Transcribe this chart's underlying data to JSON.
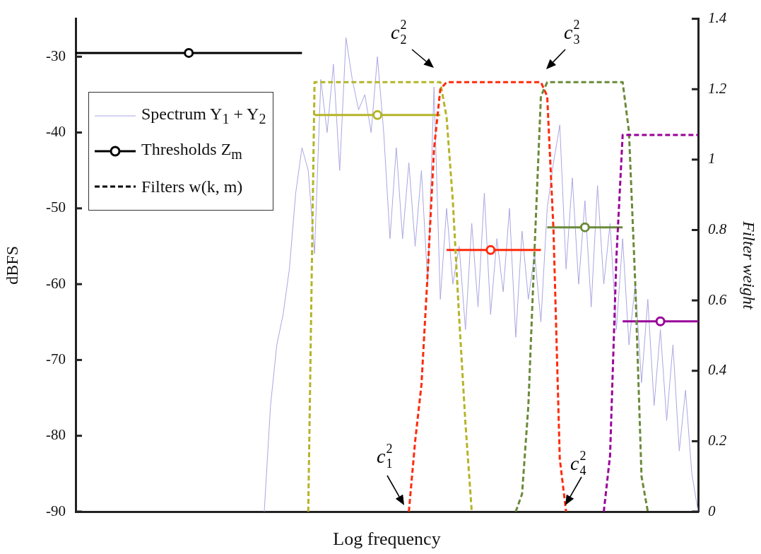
{
  "chart_data": {
    "type": "line",
    "xlabel": "Log frequency",
    "ylabel": "dBFS",
    "y2label": "Filter weight",
    "legend": "top left",
    "categories": [
      null,
      null,
      null,
      null,
      null,
      null,
      null,
      null,
      null,
      null,
      null,
      null,
      null,
      null,
      null,
      null,
      null,
      null,
      null,
      null,
      null,
      null,
      null,
      null,
      null,
      null,
      null,
      null,
      null,
      null,
      null,
      null,
      null,
      null,
      null,
      null,
      null,
      null,
      null,
      null,
      null,
      null,
      null,
      null,
      null,
      null,
      null,
      null,
      null,
      null,
      null,
      null,
      null,
      null,
      null,
      null,
      null,
      null,
      null,
      null,
      null,
      null,
      null,
      null,
      null,
      null,
      null,
      null,
      null,
      null,
      null,
      null,
      null,
      null,
      null,
      null,
      null,
      null,
      null,
      null,
      null,
      null,
      null,
      null,
      null,
      null,
      null,
      null,
      null,
      null,
      null,
      null,
      null,
      null,
      null,
      null,
      null,
      null,
      null,
      null
    ],
    "ylim": [
      -90,
      -25
    ],
    "yticks": [
      -90,
      -80,
      -70,
      -60,
      -50,
      -40,
      -30
    ],
    "y2lim": [
      0,
      1.4
    ],
    "y2ticks": [
      0,
      0.2,
      0.4,
      0.6,
      0.8,
      1,
      1.2,
      1.4
    ],
    "series": [
      {
        "name": "Spectrum Y$_{1}$ + Y$_{2}$",
        "color": "#aaa6e2",
        "values": [
          null,
          null,
          null,
          null,
          null,
          null,
          null,
          null,
          null,
          null,
          null,
          null,
          null,
          null,
          null,
          null,
          null,
          null,
          null,
          null,
          null,
          null,
          null,
          null,
          null,
          null,
          null,
          null,
          null,
          null,
          -90,
          -76,
          -68,
          -64,
          -58,
          -48,
          -42,
          -45,
          -56,
          -33,
          -40,
          -31,
          -45,
          -27.5,
          -33,
          -37,
          -35,
          -40,
          -30,
          -40,
          -54,
          -42,
          -54,
          -44,
          -55,
          -45,
          -60,
          -34,
          -62,
          -50,
          -60,
          -55,
          -66,
          -52,
          -63,
          -48,
          -64,
          -54,
          -61,
          -50,
          -67,
          -53,
          -62,
          -56,
          -65,
          -50,
          -44,
          -39,
          -58,
          -46,
          -60,
          -49,
          -63,
          -47,
          -60,
          -52,
          -66,
          -54,
          -68,
          -60,
          -73,
          -62,
          -76,
          -66,
          -78,
          -68,
          -82,
          -74,
          -85,
          -90
        ]
      },
      {
        "name": "Thresholds Z$_{m}$",
        "color": "#000000",
        "line_style": "solid",
        "values": [
          -29.5,
          -29.5,
          -29.5,
          -29.5,
          -29.5,
          -29.5,
          -29.5,
          -29.5,
          -29.5,
          -29.5,
          -29.5,
          -29.5,
          -29.5,
          -29.5,
          -29.5,
          -29.5,
          -29.5,
          -29.5,
          -29.5,
          -29.5,
          -29.5,
          -29.5,
          -29.5,
          -29.5,
          -29.5,
          -29.5,
          -29.5,
          -29.5,
          -29.5,
          -29.5,
          -29.5,
          -29.5,
          -29.5,
          -29.5,
          -29.5,
          -29.5,
          -29.5,
          null,
          null,
          null,
          null,
          null,
          null,
          null,
          null,
          null,
          null,
          null,
          null,
          null,
          null,
          null,
          null,
          null,
          null,
          null,
          null,
          null,
          null,
          null,
          null,
          null,
          null,
          null,
          null,
          null,
          null,
          null,
          null,
          null,
          null,
          null,
          null,
          null,
          null,
          null,
          null,
          null,
          null,
          null,
          null,
          null,
          null,
          null,
          null,
          null,
          null,
          null,
          null,
          null,
          null,
          null,
          null,
          null,
          null,
          null,
          null,
          null,
          null,
          null
        ]
      },
      {
        "type": "scatter",
        "color": "#000000",
        "marker": "circle",
        "values": [
          null,
          null,
          null,
          null,
          null,
          null,
          null,
          null,
          null,
          null,
          null,
          null,
          null,
          null,
          null,
          null,
          null,
          null,
          -29.5,
          null,
          null,
          null,
          null,
          null,
          null,
          null,
          null,
          null,
          null,
          null,
          null,
          null,
          null,
          null,
          null,
          null,
          null,
          null,
          null,
          null,
          null,
          null,
          null,
          null,
          null,
          null,
          null,
          null,
          null,
          null,
          null,
          null,
          null,
          null,
          null,
          null,
          null,
          null,
          null,
          null,
          null,
          null,
          null,
          null,
          null,
          null,
          null,
          null,
          null,
          null,
          null,
          null,
          null,
          null,
          null,
          null,
          null,
          null,
          null,
          null,
          null,
          null,
          null,
          null,
          null,
          null,
          null,
          null,
          null,
          null,
          null,
          null,
          null,
          null,
          null,
          null,
          null,
          null,
          null,
          null
        ]
      },
      {
        "color": "#b4b428",
        "line_style": "solid",
        "values": [
          null,
          null,
          null,
          null,
          null,
          null,
          null,
          null,
          null,
          null,
          null,
          null,
          null,
          null,
          null,
          null,
          null,
          null,
          null,
          null,
          null,
          null,
          null,
          null,
          null,
          null,
          null,
          null,
          null,
          null,
          null,
          null,
          null,
          null,
          null,
          null,
          null,
          null,
          -37.7,
          -37.7,
          -37.7,
          -37.7,
          -37.7,
          -37.7,
          -37.7,
          -37.7,
          -37.7,
          -37.7,
          -37.7,
          -37.7,
          -37.7,
          -37.7,
          -37.7,
          -37.7,
          -37.7,
          -37.7,
          -37.7,
          -37.7,
          -37.7,
          null,
          null,
          null,
          null,
          null,
          null,
          null,
          null,
          null,
          null,
          null,
          null,
          null,
          null,
          null,
          null,
          null,
          null,
          null,
          null,
          null,
          null,
          null,
          null,
          null,
          null,
          null,
          null,
          null,
          null,
          null,
          null,
          null,
          null,
          null,
          null,
          null,
          null,
          null,
          null,
          null
        ]
      },
      {
        "type": "scatter",
        "color": "#b4b428",
        "marker": "circle",
        "values": [
          null,
          null,
          null,
          null,
          null,
          null,
          null,
          null,
          null,
          null,
          null,
          null,
          null,
          null,
          null,
          null,
          null,
          null,
          null,
          null,
          null,
          null,
          null,
          null,
          null,
          null,
          null,
          null,
          null,
          null,
          null,
          null,
          null,
          null,
          null,
          null,
          null,
          null,
          null,
          null,
          null,
          null,
          null,
          null,
          null,
          null,
          null,
          null,
          -37.7,
          null,
          null,
          null,
          null,
          null,
          null,
          null,
          null,
          null,
          null,
          null,
          null,
          null,
          null,
          null,
          null,
          null,
          null,
          null,
          null,
          null,
          null,
          null,
          null,
          null,
          null,
          null,
          null,
          null,
          null,
          null,
          null,
          null,
          null,
          null,
          null,
          null,
          null,
          null,
          null,
          null,
          null,
          null,
          null,
          null,
          null,
          null,
          null,
          null,
          null,
          null
        ]
      },
      {
        "color": "#ff2a0a",
        "line_style": "solid",
        "values": [
          null,
          null,
          null,
          null,
          null,
          null,
          null,
          null,
          null,
          null,
          null,
          null,
          null,
          null,
          null,
          null,
          null,
          null,
          null,
          null,
          null,
          null,
          null,
          null,
          null,
          null,
          null,
          null,
          null,
          null,
          null,
          null,
          null,
          null,
          null,
          null,
          null,
          null,
          null,
          null,
          null,
          null,
          null,
          null,
          null,
          null,
          null,
          null,
          null,
          null,
          null,
          null,
          null,
          null,
          null,
          null,
          null,
          null,
          null,
          -55.5,
          -55.5,
          -55.5,
          -55.5,
          -55.5,
          -55.5,
          -55.5,
          -55.5,
          -55.5,
          -55.5,
          -55.5,
          -55.5,
          -55.5,
          -55.5,
          -55.5,
          -55.5,
          null,
          null,
          null,
          null,
          null,
          null,
          null,
          null,
          null,
          null,
          null,
          null,
          null,
          null,
          null,
          null,
          null,
          null,
          null,
          null,
          null,
          null,
          null,
          null,
          null
        ]
      },
      {
        "type": "scatter",
        "color": "#ff2a0a",
        "marker": "circle",
        "values": [
          null,
          null,
          null,
          null,
          null,
          null,
          null,
          null,
          null,
          null,
          null,
          null,
          null,
          null,
          null,
          null,
          null,
          null,
          null,
          null,
          null,
          null,
          null,
          null,
          null,
          null,
          null,
          null,
          null,
          null,
          null,
          null,
          null,
          null,
          null,
          null,
          null,
          null,
          null,
          null,
          null,
          null,
          null,
          null,
          null,
          null,
          null,
          null,
          null,
          null,
          null,
          null,
          null,
          null,
          null,
          null,
          null,
          null,
          null,
          null,
          null,
          null,
          null,
          null,
          null,
          null,
          -55.5,
          null,
          null,
          null,
          null,
          null,
          null,
          null,
          null,
          null,
          null,
          null,
          null,
          null,
          null,
          null,
          null,
          null,
          null,
          null,
          null,
          null,
          null,
          null,
          null,
          null,
          null,
          null,
          null,
          null,
          null,
          null,
          null,
          null
        ]
      },
      {
        "color": "#6a8a3a",
        "line_style": "solid",
        "values": [
          null,
          null,
          null,
          null,
          null,
          null,
          null,
          null,
          null,
          null,
          null,
          null,
          null,
          null,
          null,
          null,
          null,
          null,
          null,
          null,
          null,
          null,
          null,
          null,
          null,
          null,
          null,
          null,
          null,
          null,
          null,
          null,
          null,
          null,
          null,
          null,
          null,
          null,
          null,
          null,
          null,
          null,
          null,
          null,
          null,
          null,
          null,
          null,
          null,
          null,
          null,
          null,
          null,
          null,
          null,
          null,
          null,
          null,
          null,
          null,
          null,
          null,
          null,
          null,
          null,
          null,
          null,
          null,
          null,
          null,
          null,
          null,
          null,
          null,
          null,
          -52.5,
          -52.5,
          -52.5,
          -52.5,
          -52.5,
          -52.5,
          -52.5,
          -52.5,
          -52.5,
          -52.5,
          -52.5,
          -52.5,
          -52.5,
          null,
          null,
          null,
          null,
          null,
          null,
          null,
          null,
          null,
          null,
          null,
          null
        ]
      },
      {
        "type": "scatter",
        "color": "#6a8a3a",
        "marker": "circle",
        "values": [
          null,
          null,
          null,
          null,
          null,
          null,
          null,
          null,
          null,
          null,
          null,
          null,
          null,
          null,
          null,
          null,
          null,
          null,
          null,
          null,
          null,
          null,
          null,
          null,
          null,
          null,
          null,
          null,
          null,
          null,
          null,
          null,
          null,
          null,
          null,
          null,
          null,
          null,
          null,
          null,
          null,
          null,
          null,
          null,
          null,
          null,
          null,
          null,
          null,
          null,
          null,
          null,
          null,
          null,
          null,
          null,
          null,
          null,
          null,
          null,
          null,
          null,
          null,
          null,
          null,
          null,
          null,
          null,
          null,
          null,
          null,
          null,
          null,
          null,
          null,
          null,
          null,
          null,
          null,
          null,
          null,
          -52.5,
          null,
          null,
          null,
          null,
          null,
          null,
          null,
          null,
          null,
          null,
          null,
          null,
          null,
          null,
          null,
          null,
          null,
          null
        ]
      },
      {
        "color": "#990099",
        "line_style": "solid",
        "values": [
          null,
          null,
          null,
          null,
          null,
          null,
          null,
          null,
          null,
          null,
          null,
          null,
          null,
          null,
          null,
          null,
          null,
          null,
          null,
          null,
          null,
          null,
          null,
          null,
          null,
          null,
          null,
          null,
          null,
          null,
          null,
          null,
          null,
          null,
          null,
          null,
          null,
          null,
          null,
          null,
          null,
          null,
          null,
          null,
          null,
          null,
          null,
          null,
          null,
          null,
          null,
          null,
          null,
          null,
          null,
          null,
          null,
          null,
          null,
          null,
          null,
          null,
          null,
          null,
          null,
          null,
          null,
          null,
          null,
          null,
          null,
          null,
          null,
          null,
          null,
          null,
          null,
          null,
          null,
          null,
          null,
          null,
          null,
          null,
          null,
          null,
          null,
          -64.9,
          -64.9,
          -64.9,
          -64.9,
          -64.9,
          -64.9,
          -64.9,
          -64.9,
          -64.9,
          -64.9,
          -64.9,
          -64.9,
          -64.9
        ]
      },
      {
        "type": "scatter",
        "color": "#990099",
        "marker": "circle",
        "values": [
          null,
          null,
          null,
          null,
          null,
          null,
          null,
          null,
          null,
          null,
          null,
          null,
          null,
          null,
          null,
          null,
          null,
          null,
          null,
          null,
          null,
          null,
          null,
          null,
          null,
          null,
          null,
          null,
          null,
          null,
          null,
          null,
          null,
          null,
          null,
          null,
          null,
          null,
          null,
          null,
          null,
          null,
          null,
          null,
          null,
          null,
          null,
          null,
          null,
          null,
          null,
          null,
          null,
          null,
          null,
          null,
          null,
          null,
          null,
          null,
          null,
          null,
          null,
          null,
          null,
          null,
          null,
          null,
          null,
          null,
          null,
          null,
          null,
          null,
          null,
          null,
          null,
          null,
          null,
          null,
          null,
          null,
          null,
          null,
          null,
          null,
          null,
          null,
          null,
          null,
          null,
          null,
          null,
          -64.9,
          null,
          null,
          null,
          null,
          null,
          null
        ]
      },
      {
        "name": "Filters w(k, m)",
        "color": "#000000",
        "axis": "y2",
        "line_style": "dashed",
        "values": [
          null,
          null,
          null,
          null,
          null,
          null,
          null,
          null,
          null,
          null,
          null,
          null,
          null,
          null,
          null,
          null,
          null,
          null,
          null,
          null,
          null,
          null,
          null,
          null,
          null,
          null,
          null,
          null,
          null,
          null,
          null,
          null,
          null,
          null,
          null,
          null,
          null,
          null,
          null,
          null,
          null,
          null,
          null,
          null,
          null,
          null,
          null,
          null,
          null,
          null,
          null,
          null,
          null,
          null,
          null,
          null,
          null,
          null,
          null,
          null,
          null,
          null,
          null,
          null,
          null,
          null,
          null,
          null,
          null,
          null,
          null,
          null,
          null,
          null,
          null,
          null,
          null,
          null,
          null,
          null,
          null,
          null,
          null,
          null,
          null,
          null,
          null,
          null,
          null,
          null,
          null,
          null,
          null,
          null,
          null,
          null,
          null,
          null,
          null,
          null
        ]
      },
      {
        "color": "#b4b428",
        "axis": "y2",
        "line_style": "dashed",
        "values": [
          null,
          null,
          null,
          null,
          null,
          null,
          null,
          null,
          null,
          null,
          null,
          null,
          null,
          null,
          null,
          null,
          null,
          null,
          null,
          null,
          null,
          null,
          null,
          null,
          null,
          null,
          null,
          null,
          null,
          null,
          null,
          null,
          null,
          null,
          null,
          null,
          null,
          0,
          1.22,
          1.22,
          1.22,
          1.22,
          1.22,
          1.22,
          1.22,
          1.22,
          1.22,
          1.22,
          1.22,
          1.22,
          1.22,
          1.22,
          1.22,
          1.22,
          1.22,
          1.22,
          1.22,
          1.22,
          1.22,
          1.12,
          0.88,
          0.55,
          0.25,
          0,
          null,
          null,
          null,
          null,
          null,
          null,
          null,
          null,
          null,
          null,
          null,
          null,
          null,
          null,
          null,
          null,
          null,
          null,
          null,
          null,
          null,
          null,
          null,
          null,
          null,
          null,
          null,
          null,
          null,
          null,
          null,
          null,
          null,
          null,
          null,
          null
        ]
      },
      {
        "color": "#ff2a0a",
        "axis": "y2",
        "line_style": "dashed",
        "values": [
          null,
          null,
          null,
          null,
          null,
          null,
          null,
          null,
          null,
          null,
          null,
          null,
          null,
          null,
          null,
          null,
          null,
          null,
          null,
          null,
          null,
          null,
          null,
          null,
          null,
          null,
          null,
          null,
          null,
          null,
          null,
          null,
          null,
          null,
          null,
          null,
          null,
          null,
          null,
          null,
          null,
          null,
          null,
          null,
          null,
          null,
          null,
          null,
          null,
          null,
          null,
          null,
          null,
          0,
          0.2,
          0.36,
          0.68,
          1.03,
          1.2,
          1.22,
          1.22,
          1.22,
          1.22,
          1.22,
          1.22,
          1.22,
          1.22,
          1.22,
          1.22,
          1.22,
          1.22,
          1.22,
          1.22,
          1.22,
          1.22,
          1.18,
          0.8,
          0.15,
          0,
          null,
          null,
          null,
          null,
          null,
          null,
          null,
          null,
          null,
          null,
          null,
          null,
          null,
          null,
          null,
          null,
          null,
          null,
          null,
          null,
          null
        ]
      },
      {
        "color": "#6a8a3a",
        "axis": "y2",
        "line_style": "dashed",
        "values": [
          null,
          null,
          null,
          null,
          null,
          null,
          null,
          null,
          null,
          null,
          null,
          null,
          null,
          null,
          null,
          null,
          null,
          null,
          null,
          null,
          null,
          null,
          null,
          null,
          null,
          null,
          null,
          null,
          null,
          null,
          null,
          null,
          null,
          null,
          null,
          null,
          null,
          null,
          null,
          null,
          null,
          null,
          null,
          null,
          null,
          null,
          null,
          null,
          null,
          null,
          null,
          null,
          null,
          null,
          null,
          null,
          null,
          null,
          null,
          null,
          null,
          null,
          null,
          null,
          null,
          null,
          null,
          null,
          null,
          null,
          0,
          0.05,
          0.3,
          0.75,
          1.18,
          1.22,
          1.22,
          1.22,
          1.22,
          1.22,
          1.22,
          1.22,
          1.22,
          1.22,
          1.22,
          1.22,
          1.22,
          1.22,
          1.08,
          0.65,
          0.1,
          0,
          null,
          null,
          null,
          null,
          null,
          null,
          null,
          null
        ]
      },
      {
        "color": "#990099",
        "axis": "y2",
        "line_style": "dashed",
        "values": [
          null,
          null,
          null,
          null,
          null,
          null,
          null,
          null,
          null,
          null,
          null,
          null,
          null,
          null,
          null,
          null,
          null,
          null,
          null,
          null,
          null,
          null,
          null,
          null,
          null,
          null,
          null,
          null,
          null,
          null,
          null,
          null,
          null,
          null,
          null,
          null,
          null,
          null,
          null,
          null,
          null,
          null,
          null,
          null,
          null,
          null,
          null,
          null,
          null,
          null,
          null,
          null,
          null,
          null,
          null,
          null,
          null,
          null,
          null,
          null,
          null,
          null,
          null,
          null,
          null,
          null,
          null,
          null,
          null,
          null,
          null,
          null,
          null,
          null,
          null,
          null,
          null,
          null,
          null,
          null,
          null,
          null,
          null,
          null,
          0,
          0.16,
          0.72,
          1.07,
          1.07,
          1.07,
          1.07,
          1.07,
          1.07,
          1.07,
          1.07,
          1.07,
          1.07,
          1.07,
          1.07,
          1.07
        ]
      }
    ],
    "annotations": [
      "c$_{1}$$^{2}$",
      "c$_{2}$$^{2}$",
      "c$_{3}$$^{2}$",
      "c$_{4}$$^{2}$"
    ]
  }
}
